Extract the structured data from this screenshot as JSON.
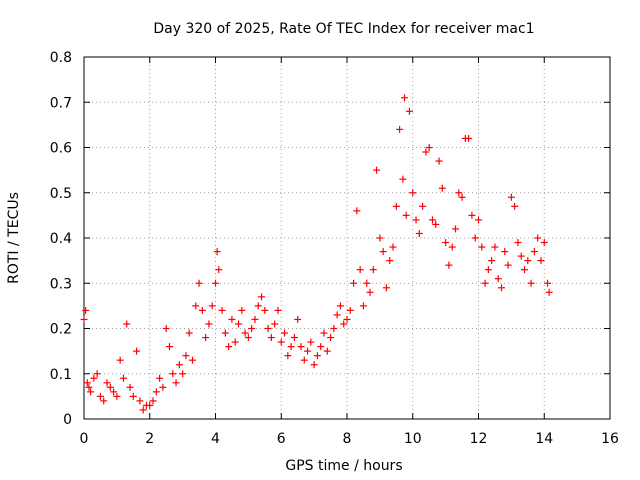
{
  "chart_data": {
    "type": "scatter",
    "title": "Day 320 of 2025, Rate Of TEC Index for receiver mac1",
    "xlabel": "GPS time / hours",
    "ylabel": "ROTI / TECUs",
    "xlim": [
      0,
      16
    ],
    "ylim": [
      0,
      0.8
    ],
    "x_ticks": [
      "0",
      "2",
      "4",
      "6",
      "8",
      "10",
      "12",
      "14",
      "16"
    ],
    "y_ticks": [
      "0",
      "0.1",
      "0.2",
      "0.3",
      "0.4",
      "0.5",
      "0.6",
      "0.7",
      "0.8"
    ],
    "grid": true,
    "marker": "+",
    "color": "#ff0000",
    "series": [
      {
        "name": "ROTI",
        "x": [
          0.0,
          0.05,
          0.1,
          0.15,
          0.2,
          0.3,
          0.4,
          0.5,
          0.6,
          0.7,
          0.8,
          0.9,
          1.0,
          1.1,
          1.2,
          1.3,
          1.4,
          1.5,
          1.6,
          1.7,
          1.8,
          1.9,
          2.0,
          2.1,
          2.2,
          2.3,
          2.4,
          2.5,
          2.6,
          2.7,
          2.8,
          2.9,
          3.0,
          3.1,
          3.2,
          3.3,
          3.4,
          3.5,
          3.6,
          3.7,
          3.8,
          3.9,
          4.0,
          4.05,
          4.1,
          4.2,
          4.3,
          4.4,
          4.5,
          4.6,
          4.7,
          4.8,
          4.9,
          5.0,
          5.1,
          5.2,
          5.3,
          5.4,
          5.5,
          5.6,
          5.7,
          5.8,
          5.9,
          6.0,
          6.1,
          6.2,
          6.3,
          6.4,
          6.5,
          6.6,
          6.7,
          6.8,
          6.9,
          7.0,
          7.1,
          7.2,
          7.3,
          7.4,
          7.5,
          7.6,
          7.7,
          7.8,
          7.9,
          8.0,
          8.1,
          8.2,
          8.3,
          8.4,
          8.5,
          8.6,
          8.7,
          8.8,
          8.9,
          9.0,
          9.1,
          9.2,
          9.3,
          9.4,
          9.5,
          9.6,
          9.7,
          9.75,
          9.8,
          9.9,
          10.0,
          10.1,
          10.2,
          10.3,
          10.4,
          10.5,
          10.6,
          10.7,
          10.8,
          10.9,
          11.0,
          11.1,
          11.2,
          11.3,
          11.4,
          11.5,
          11.6,
          11.7,
          11.8,
          11.9,
          12.0,
          12.1,
          12.2,
          12.3,
          12.4,
          12.5,
          12.6,
          12.7,
          12.8,
          12.9,
          13.0,
          13.1,
          13.2,
          13.3,
          13.4,
          13.5,
          13.6,
          13.7,
          13.8,
          13.9,
          14.0,
          14.1,
          14.15
        ],
        "y": [
          0.22,
          0.24,
          0.08,
          0.07,
          0.06,
          0.09,
          0.1,
          0.05,
          0.04,
          0.08,
          0.07,
          0.06,
          0.05,
          0.13,
          0.09,
          0.21,
          0.07,
          0.05,
          0.15,
          0.04,
          0.02,
          0.03,
          0.03,
          0.04,
          0.06,
          0.09,
          0.07,
          0.2,
          0.16,
          0.1,
          0.08,
          0.12,
          0.1,
          0.14,
          0.19,
          0.13,
          0.25,
          0.3,
          0.24,
          0.18,
          0.21,
          0.25,
          0.3,
          0.37,
          0.33,
          0.24,
          0.19,
          0.16,
          0.22,
          0.17,
          0.21,
          0.24,
          0.19,
          0.18,
          0.2,
          0.22,
          0.25,
          0.27,
          0.24,
          0.2,
          0.18,
          0.21,
          0.24,
          0.17,
          0.19,
          0.14,
          0.16,
          0.18,
          0.22,
          0.16,
          0.13,
          0.15,
          0.17,
          0.12,
          0.14,
          0.16,
          0.19,
          0.15,
          0.18,
          0.2,
          0.23,
          0.25,
          0.21,
          0.22,
          0.24,
          0.3,
          0.46,
          0.33,
          0.25,
          0.3,
          0.28,
          0.33,
          0.55,
          0.4,
          0.37,
          0.29,
          0.35,
          0.38,
          0.47,
          0.64,
          0.53,
          0.71,
          0.45,
          0.68,
          0.5,
          0.44,
          0.41,
          0.47,
          0.59,
          0.6,
          0.44,
          0.43,
          0.57,
          0.51,
          0.39,
          0.34,
          0.38,
          0.42,
          0.5,
          0.49,
          0.62,
          0.62,
          0.45,
          0.4,
          0.44,
          0.38,
          0.3,
          0.33,
          0.35,
          0.38,
          0.31,
          0.29,
          0.37,
          0.34,
          0.49,
          0.47,
          0.39,
          0.36,
          0.33,
          0.35,
          0.3,
          0.37,
          0.4,
          0.35,
          0.39,
          0.3,
          0.28
        ]
      }
    ]
  }
}
